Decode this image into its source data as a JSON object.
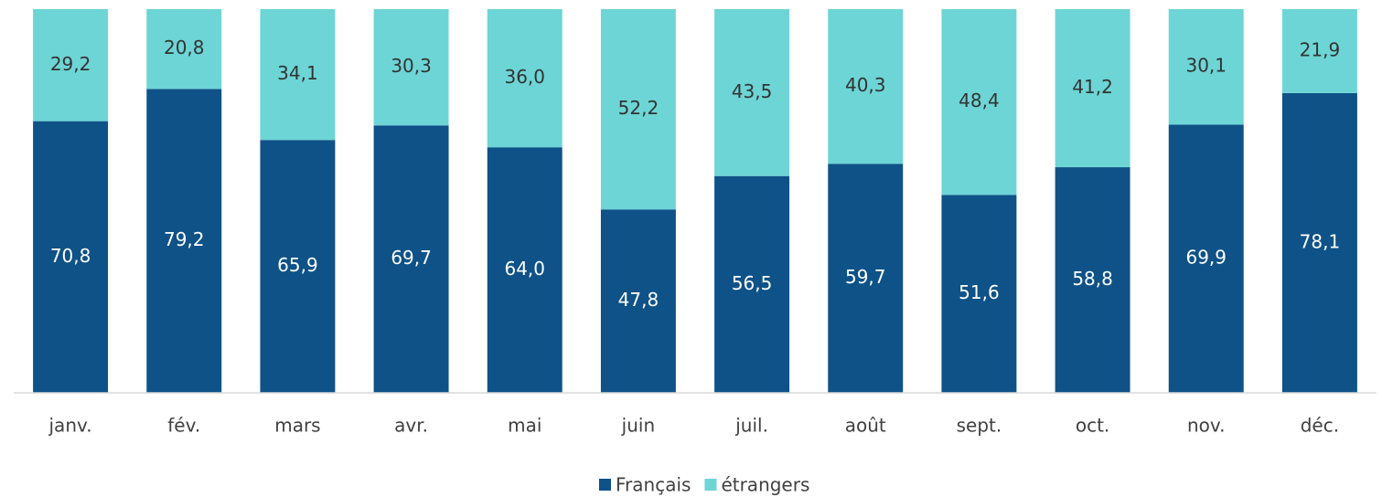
{
  "chart_data": {
    "type": "stacked_bar",
    "categories": [
      "janv.",
      "fév.",
      "mars",
      "avr.",
      "mai",
      "juin",
      "juil.",
      "août",
      "sept.",
      "oct.",
      "nov.",
      "déc."
    ],
    "series": [
      {
        "name": "Français",
        "color": "#0e5288",
        "values": [
          70.8,
          79.2,
          65.9,
          69.7,
          64.0,
          47.8,
          56.5,
          59.7,
          51.6,
          58.8,
          69.9,
          78.1
        ],
        "value_labels": [
          "70,8",
          "79,2",
          "65,9",
          "69,7",
          "64,0",
          "47,8",
          "56,5",
          "59,7",
          "51,6",
          "58,8",
          "69,9",
          "78,1"
        ],
        "label_color": "#ffffff"
      },
      {
        "name": "étrangers",
        "color": "#6dd5d5",
        "values": [
          29.2,
          20.8,
          34.1,
          30.3,
          36.0,
          52.2,
          43.5,
          40.3,
          48.4,
          41.2,
          30.1,
          21.9
        ],
        "value_labels": [
          "29,2",
          "20,8",
          "34,1",
          "30,3",
          "36,0",
          "52,2",
          "43,5",
          "40,3",
          "48,4",
          "41,2",
          "30,1",
          "21,9"
        ],
        "label_color": "#333333"
      }
    ],
    "ylim": [
      0,
      100
    ],
    "legend": "bottom"
  }
}
